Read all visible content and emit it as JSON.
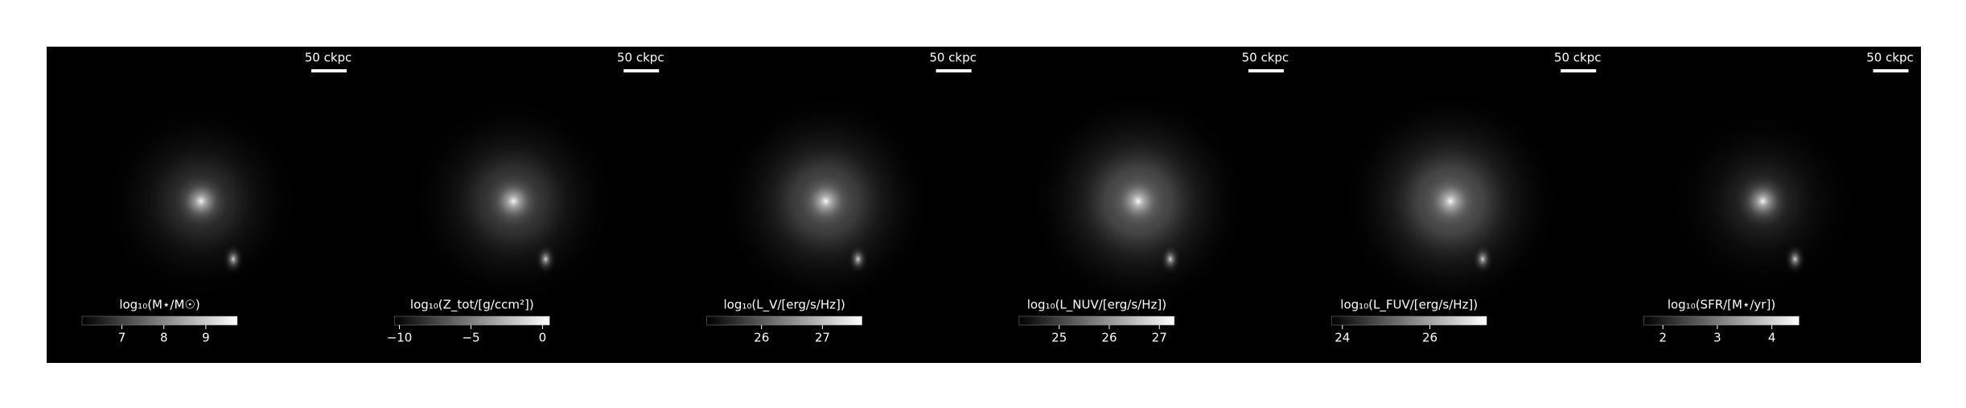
{
  "panels": [
    {
      "scale_label": "50 ckpc",
      "colorbar": {
        "label": "log₁₀(M⋆/M☉)",
        "lim": [
          6.05,
          9.75
        ],
        "ticks": [
          7,
          8,
          9
        ]
      }
    },
    {
      "scale_label": "50 ckpc",
      "colorbar": {
        "label": "log₁₀(Z_tot/[g/ccm²])",
        "lim": [
          -10.35,
          0.5
        ],
        "ticks": [
          {
            "value": -10,
            "label": "−10"
          },
          {
            "value": -5,
            "label": "−5"
          },
          0
        ]
      }
    },
    {
      "scale_label": "50 ckpc",
      "colorbar": {
        "label": "log₁₀(L_V/[erg/s/Hz])",
        "lim": [
          25.1,
          27.65
        ],
        "ticks": [
          26,
          27
        ]
      }
    },
    {
      "scale_label": "50 ckpc",
      "colorbar": {
        "label": "log₁₀(L_NUV/[erg/s/Hz])",
        "lim": [
          24.2,
          27.3
        ],
        "ticks": [
          25,
          26,
          27
        ]
      }
    },
    {
      "scale_label": "50 ckpc",
      "colorbar": {
        "label": "log₁₀(L_FUV/[erg/s/Hz])",
        "lim": [
          23.75,
          27.3
        ],
        "ticks": [
          24,
          26
        ]
      }
    },
    {
      "scale_label": "50 ckpc",
      "colorbar": {
        "label": "log₁₀(SFR/[M⋆/yr])",
        "lim": [
          1.65,
          4.5
        ],
        "ticks": [
          2,
          3,
          4
        ]
      }
    }
  ]
}
